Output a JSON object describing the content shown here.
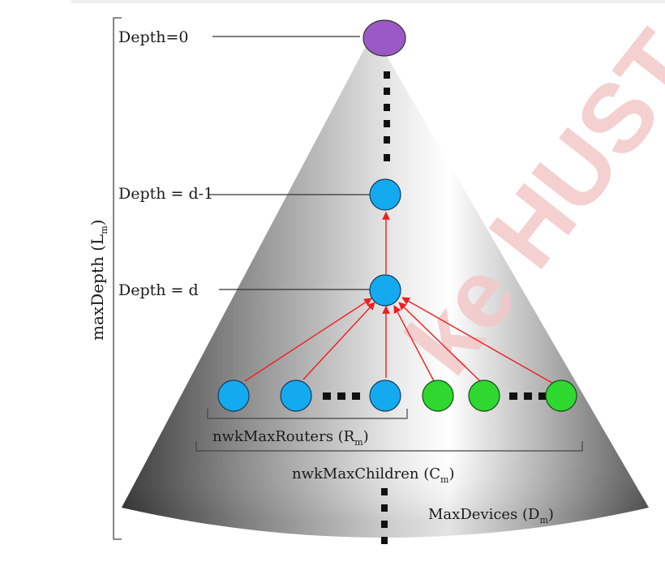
{
  "labels": {
    "depth0": "Depth=0",
    "depth_d_minus_1": "Depth = d-1",
    "depth_d": "Depth = d",
    "max_depth": "maxDepth (L",
    "max_depth_sub": "m",
    "max_depth_close": ")",
    "nwk_max_routers": "nwkMaxRouters (R",
    "nwk_max_routers_sub": "m",
    "nwk_max_routers_close": ")",
    "nwk_max_children": "nwkMaxChildren (C",
    "nwk_max_children_sub": "m",
    "nwk_max_children_close": ")",
    "max_devices": "MaxDevices (D",
    "max_devices_sub": "m",
    "max_devices_close": ")",
    "watermark": "ke HUST"
  },
  "colors": {
    "root": "#9b59c6",
    "router": "#13aaf0",
    "end_device": "#2fd82f",
    "arrow": "#f01e1e",
    "watermark": "#f3c8c8"
  }
}
